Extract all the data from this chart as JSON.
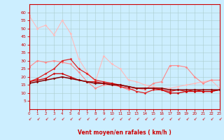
{
  "xlabel": "Vent moyen/en rafales ( km/h )",
  "xlim": [
    0,
    23
  ],
  "ylim": [
    0,
    65
  ],
  "yticks": [
    5,
    10,
    15,
    20,
    25,
    30,
    35,
    40,
    45,
    50,
    55,
    60
  ],
  "xticks": [
    0,
    1,
    2,
    3,
    4,
    5,
    6,
    7,
    8,
    9,
    10,
    11,
    12,
    13,
    14,
    15,
    16,
    17,
    18,
    19,
    20,
    21,
    22,
    23
  ],
  "bg_color": "#cceeff",
  "grid_color": "#aacccc",
  "lines": [
    {
      "x": [
        0,
        1,
        2,
        3,
        4,
        5,
        6,
        7,
        8,
        9,
        10,
        11,
        12,
        13,
        14,
        15,
        16,
        17,
        18,
        19,
        20,
        21,
        22,
        23
      ],
      "y": [
        58,
        50,
        52,
        46,
        55,
        47,
        31,
        23,
        17,
        33,
        28,
        25,
        18,
        17,
        15,
        14,
        13,
        13,
        14,
        15,
        16,
        17,
        18,
        13
      ],
      "color": "#ffbbbb",
      "marker": "D",
      "markersize": 1.8,
      "linewidth": 0.8,
      "zorder": 2
    },
    {
      "x": [
        0,
        1,
        2,
        3,
        4,
        5,
        6,
        7,
        8,
        9,
        10,
        11,
        12,
        13,
        14,
        15,
        16,
        17,
        18,
        19,
        20,
        21,
        22,
        23
      ],
      "y": [
        26,
        30,
        29,
        30,
        29,
        28,
        23,
        17,
        13,
        15,
        15,
        14,
        12,
        13,
        12,
        16,
        17,
        27,
        27,
        26,
        20,
        16,
        18,
        18
      ],
      "color": "#ff8888",
      "marker": "D",
      "markersize": 1.8,
      "linewidth": 0.8,
      "zorder": 2
    },
    {
      "x": [
        0,
        1,
        2,
        3,
        4,
        5,
        6,
        7,
        8,
        9,
        10,
        11,
        12,
        13,
        14,
        15,
        16,
        17,
        18,
        19,
        20,
        21,
        22,
        23
      ],
      "y": [
        17,
        19,
        22,
        25,
        30,
        31,
        25,
        22,
        18,
        17,
        16,
        14,
        13,
        11,
        10,
        12,
        12,
        11,
        12,
        11,
        12,
        11,
        11,
        12
      ],
      "color": "#dd2222",
      "marker": "D",
      "markersize": 1.8,
      "linewidth": 0.9,
      "zorder": 3
    },
    {
      "x": [
        0,
        1,
        2,
        3,
        4,
        5,
        6,
        7,
        8,
        9,
        10,
        11,
        12,
        13,
        14,
        15,
        16,
        17,
        18,
        19,
        20,
        21,
        22,
        23
      ],
      "y": [
        17,
        18,
        19,
        22,
        22,
        20,
        18,
        17,
        17,
        16,
        16,
        15,
        14,
        13,
        13,
        13,
        12,
        10,
        10,
        11,
        11,
        11,
        11,
        12
      ],
      "color": "#cc0000",
      "marker": "D",
      "markersize": 1.8,
      "linewidth": 0.9,
      "zorder": 3
    },
    {
      "x": [
        0,
        1,
        2,
        3,
        4,
        5,
        6,
        7,
        8,
        9,
        10,
        11,
        12,
        13,
        14,
        15,
        16,
        17,
        18,
        19,
        20,
        21,
        22,
        23
      ],
      "y": [
        16,
        17,
        18,
        19,
        20,
        19,
        18,
        17,
        16,
        16,
        15,
        15,
        14,
        13,
        13,
        13,
        13,
        12,
        12,
        12,
        12,
        12,
        12,
        12
      ],
      "color": "#880000",
      "marker": "D",
      "markersize": 1.8,
      "linewidth": 1.1,
      "zorder": 4
    }
  ],
  "axis_color": "#cc0000",
  "tick_color": "#cc0000",
  "xlabel_color": "#cc0000"
}
